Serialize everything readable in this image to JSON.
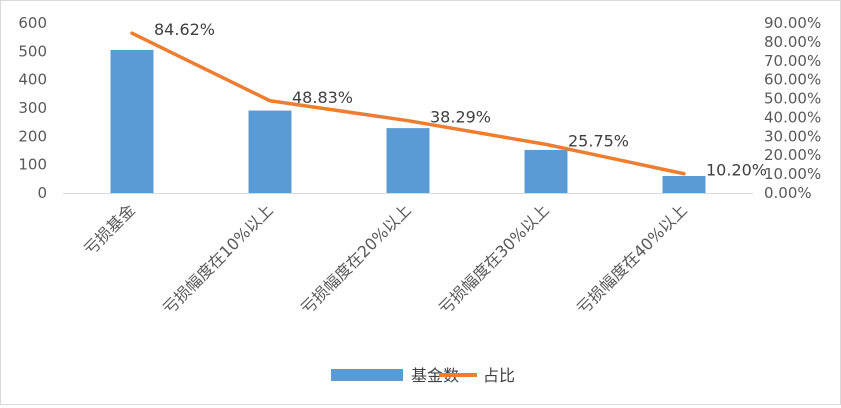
{
  "chart_data": {
    "type": "bar",
    "categories": [
      "亏损基金",
      "亏损幅度在10%以上",
      "亏损幅度在20%以上",
      "亏损幅度在30%以上",
      "亏损幅度在40%以上"
    ],
    "series": [
      {
        "name": "基金数",
        "type": "bar",
        "axis": "left",
        "color": "#5b9bd5",
        "values": [
          505,
          291,
          229,
          152,
          60
        ]
      },
      {
        "name": "占比",
        "type": "line",
        "axis": "right",
        "color": "#ed7d31",
        "values": [
          84.62,
          48.83,
          38.29,
          25.75,
          10.2
        ],
        "labels": [
          "84.62%",
          "48.83%",
          "38.29%",
          "25.75%",
          "10.20%"
        ]
      }
    ],
    "title": "",
    "y_left": {
      "min": 0,
      "max": 600,
      "ticks": [
        "0",
        "100",
        "200",
        "300",
        "400",
        "500",
        "600"
      ]
    },
    "y_right": {
      "min": 0,
      "max": 90,
      "ticks": [
        "0.00%",
        "10.00%",
        "20.00%",
        "30.00%",
        "40.00%",
        "50.00%",
        "60.00%",
        "70.00%",
        "80.00%",
        "90.00%"
      ]
    },
    "grid": false,
    "legend": "bottom-center"
  }
}
